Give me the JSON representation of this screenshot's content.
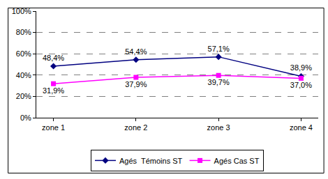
{
  "chart_data": {
    "type": "line",
    "categories": [
      "zone 1",
      "zone 2",
      "zone 3",
      "zone 4"
    ],
    "series": [
      {
        "name": "Agés  Témoins ST",
        "color": "#000080",
        "marker": "diamond",
        "values": [
          48.4,
          54.4,
          57.1,
          38.9
        ],
        "value_labels": [
          "48,4%",
          "54,4%",
          "57,1%",
          "38,9%"
        ]
      },
      {
        "name": "Agés Cas ST",
        "color": "#ff00ff",
        "marker": "square",
        "values": [
          31.9,
          37.9,
          39.7,
          37.0
        ],
        "value_labels": [
          "31,9%",
          "37,9%",
          "39,7%",
          "37,0%"
        ]
      }
    ],
    "ylim": [
      0,
      100
    ],
    "yticks": [
      {
        "value": 0,
        "label": "0%"
      },
      {
        "value": 20,
        "label": "20%"
      },
      {
        "value": 40,
        "label": "40%"
      },
      {
        "value": 60,
        "label": "60%"
      },
      {
        "value": 80,
        "label": "80%"
      },
      {
        "value": 100,
        "label": "100%"
      }
    ],
    "grid": true,
    "data_labels": true,
    "legend": "bottom"
  }
}
